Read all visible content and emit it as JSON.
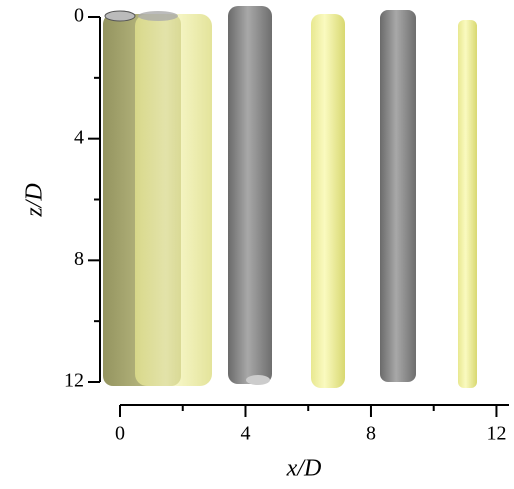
{
  "chart_data": {
    "type": "isosurface",
    "x_label": "x/D",
    "y_label": "z/D",
    "xlim": [
      0,
      12.4
    ],
    "xticks": [
      0,
      4,
      8,
      12
    ],
    "xminor_ticks": [
      2,
      6,
      10
    ],
    "ylim": [
      0,
      12
    ],
    "yticks": [
      0,
      4,
      8,
      12
    ],
    "yminor_ticks": [
      2,
      6,
      10
    ],
    "y_inverted": true
  }
}
